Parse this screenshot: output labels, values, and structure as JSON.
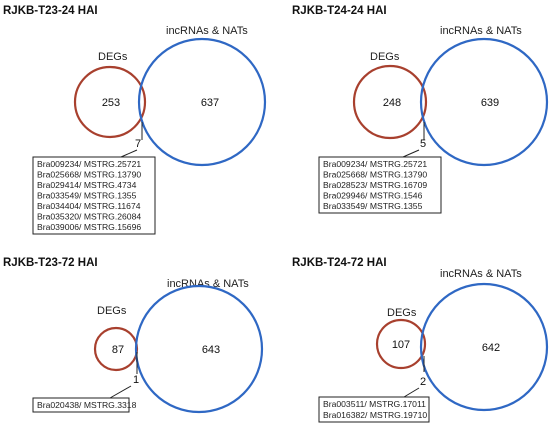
{
  "colors": {
    "degs": "#a8402e",
    "lncrnas": "#2f68c4"
  },
  "panels": [
    {
      "title": "RJKB-T23-24 HAI",
      "degs_label": "DEGs",
      "lnc_label": "incRNAs & NATs",
      "degs_only": "253",
      "lnc_only": "637",
      "overlap": "7",
      "genes": [
        "Bra009234/ MSTRG.25721",
        "Bra025668/ MSTRG.13790",
        "Bra029414/ MSTRG.4734",
        "Bra033549/ MSTRG.1355",
        "Bra034404/ MSTRG.11674",
        "Bra035320/ MSTRG.26084",
        "Bra039006/ MSTRG.15696"
      ]
    },
    {
      "title": "RJKB-T24-24 HAI",
      "degs_label": "DEGs",
      "lnc_label": "incRNAs & NATs",
      "degs_only": "248",
      "lnc_only": "639",
      "overlap": "5",
      "genes": [
        "Bra009234/ MSTRG.25721",
        "Bra025668/ MSTRG.13790",
        "Bra028523/ MSTRG.16709",
        "Bra029946/ MSTRG.1546",
        "Bra033549/ MSTRG.1355"
      ]
    },
    {
      "title": "RJKB-T23-72 HAI",
      "degs_label": "DEGs",
      "lnc_label": "incRNAs & NATs",
      "degs_only": "87",
      "lnc_only": "643",
      "overlap": "1",
      "genes": [
        "Bra020438/ MSTRG.3318"
      ]
    },
    {
      "title": "RJKB-T24-72 HAI",
      "degs_label": "DEGs",
      "lnc_label": "incRNAs & NATs",
      "degs_only": "107",
      "lnc_only": "642",
      "overlap": "2",
      "genes": [
        "Bra003511/ MSTRG.17011",
        "Bra016382/ MSTRG.19710"
      ]
    }
  ]
}
